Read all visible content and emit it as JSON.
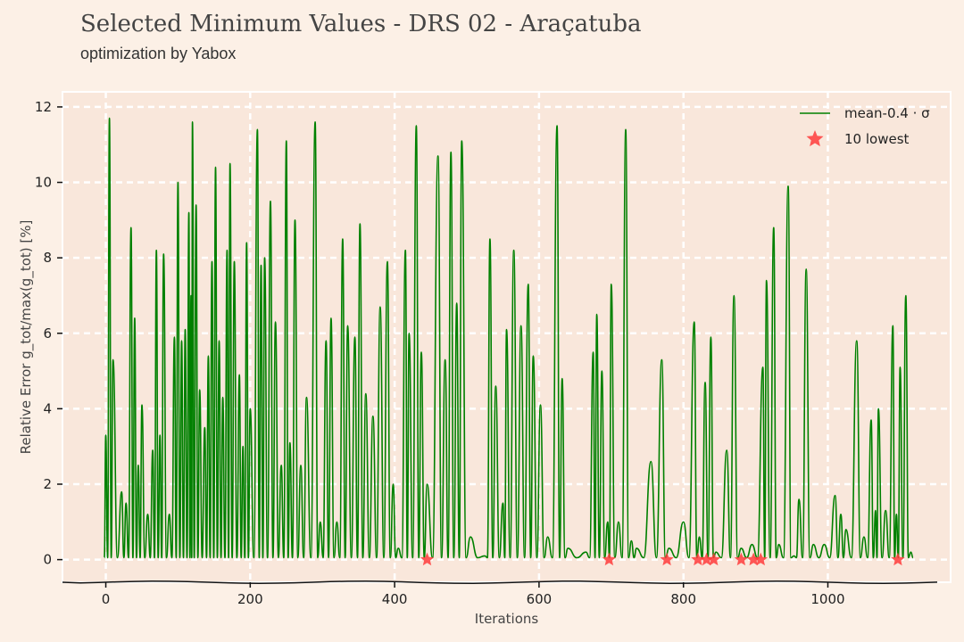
{
  "header": {
    "title": "Selected Minimum Values - DRS 02 - Araçatuba",
    "subtitle": "optimization by Yabox"
  },
  "colors": {
    "background": "#fcf0e6",
    "plot_background": "#f9e7db",
    "series": "#008000",
    "marker": "#ff3b3b",
    "grid": "#ffffff"
  },
  "chart_data": {
    "type": "line",
    "title": "Selected Minimum Values - DRS 02 - Araçatuba",
    "subtitle": "optimization by Yabox",
    "xlabel": "Iterations",
    "ylabel": "Relative Error g_tot/max(g_tot) [%]",
    "xlim": [
      -60,
      1170
    ],
    "ylim": [
      -0.6,
      12.4
    ],
    "xticks": [
      0,
      200,
      400,
      600,
      800,
      1000
    ],
    "yticks": [
      0,
      2,
      4,
      6,
      8,
      10,
      12
    ],
    "grid": true,
    "legend_position": "top-right",
    "series": [
      {
        "name": "mean-0.4 · σ",
        "peaks": [
          [
            0,
            3.3
          ],
          [
            5,
            11.7
          ],
          [
            10,
            5.3
          ],
          [
            22,
            1.8
          ],
          [
            28,
            1.5
          ],
          [
            35,
            8.8
          ],
          [
            40,
            6.4
          ],
          [
            45,
            2.5
          ],
          [
            50,
            4.1
          ],
          [
            58,
            1.2
          ],
          [
            65,
            2.9
          ],
          [
            70,
            8.2
          ],
          [
            75,
            3.3
          ],
          [
            80,
            8.1
          ],
          [
            88,
            1.2
          ],
          [
            95,
            5.9
          ],
          [
            100,
            10.0
          ],
          [
            105,
            5.8
          ],
          [
            110,
            6.1
          ],
          [
            115,
            9.2
          ],
          [
            118,
            7.0
          ],
          [
            120,
            11.6
          ],
          [
            125,
            9.4
          ],
          [
            130,
            4.5
          ],
          [
            137,
            3.5
          ],
          [
            142,
            5.4
          ],
          [
            147,
            7.9
          ],
          [
            152,
            10.4
          ],
          [
            157,
            5.8
          ],
          [
            162,
            4.3
          ],
          [
            168,
            8.2
          ],
          [
            172,
            10.5
          ],
          [
            178,
            7.9
          ],
          [
            185,
            4.9
          ],
          [
            190,
            3.0
          ],
          [
            195,
            8.4
          ],
          [
            200,
            4.0
          ],
          [
            210,
            11.4
          ],
          [
            215,
            7.8
          ],
          [
            220,
            8.0
          ],
          [
            228,
            9.5
          ],
          [
            235,
            6.3
          ],
          [
            243,
            2.5
          ],
          [
            250,
            11.1
          ],
          [
            255,
            3.1
          ],
          [
            262,
            9.0
          ],
          [
            270,
            2.5
          ],
          [
            278,
            4.3
          ],
          [
            290,
            11.6
          ],
          [
            297,
            1.0
          ],
          [
            305,
            5.8
          ],
          [
            312,
            6.4
          ],
          [
            320,
            1.0
          ],
          [
            328,
            8.5
          ],
          [
            335,
            6.2
          ],
          [
            345,
            5.9
          ],
          [
            352,
            8.9
          ],
          [
            360,
            4.4
          ],
          [
            370,
            3.8
          ],
          [
            380,
            6.7
          ],
          [
            390,
            7.9
          ],
          [
            398,
            2.0
          ],
          [
            405,
            0.3
          ],
          [
            415,
            8.2
          ],
          [
            420,
            6.0
          ],
          [
            430,
            11.5
          ],
          [
            437,
            5.5
          ],
          [
            445,
            2.0
          ],
          [
            460,
            10.7
          ],
          [
            470,
            5.3
          ],
          [
            478,
            10.8
          ],
          [
            486,
            6.8
          ],
          [
            493,
            11.1
          ],
          [
            505,
            0.6
          ],
          [
            525,
            0.1
          ],
          [
            532,
            8.5
          ],
          [
            540,
            4.6
          ],
          [
            550,
            1.5
          ],
          [
            555,
            6.1
          ],
          [
            565,
            8.2
          ],
          [
            575,
            6.2
          ],
          [
            585,
            7.3
          ],
          [
            592,
            5.4
          ],
          [
            602,
            4.1
          ],
          [
            612,
            0.6
          ],
          [
            625,
            11.5
          ],
          [
            632,
            4.8
          ],
          [
            640,
            0.3
          ],
          [
            665,
            0.2
          ],
          [
            675,
            5.5
          ],
          [
            680,
            6.5
          ],
          [
            687,
            5.0
          ],
          [
            695,
            1.0
          ],
          [
            700,
            7.3
          ],
          [
            710,
            1.0
          ],
          [
            720,
            11.4
          ],
          [
            728,
            0.5
          ],
          [
            735,
            0.3
          ],
          [
            755,
            2.6
          ],
          [
            770,
            5.3
          ],
          [
            780,
            0.3
          ],
          [
            800,
            1.0
          ],
          [
            815,
            6.3
          ],
          [
            822,
            0.6
          ],
          [
            830,
            4.7
          ],
          [
            838,
            5.9
          ],
          [
            845,
            0.2
          ],
          [
            860,
            2.9
          ],
          [
            870,
            7.0
          ],
          [
            880,
            0.3
          ],
          [
            895,
            0.4
          ],
          [
            910,
            5.1
          ],
          [
            915,
            7.4
          ],
          [
            925,
            8.8
          ],
          [
            932,
            0.4
          ],
          [
            945,
            9.9
          ],
          [
            953,
            0.1
          ],
          [
            960,
            1.6
          ],
          [
            970,
            7.7
          ],
          [
            980,
            0.4
          ],
          [
            995,
            0.4
          ],
          [
            1010,
            1.7
          ],
          [
            1018,
            1.2
          ],
          [
            1025,
            0.8
          ],
          [
            1040,
            5.8
          ],
          [
            1050,
            0.6
          ],
          [
            1060,
            3.7
          ],
          [
            1066,
            1.3
          ],
          [
            1070,
            4.0
          ],
          [
            1080,
            1.3
          ],
          [
            1090,
            6.2
          ],
          [
            1095,
            1.2
          ],
          [
            1100,
            5.1
          ],
          [
            1108,
            7.0
          ],
          [
            1115,
            0.2
          ]
        ]
      },
      {
        "name": "10 lowest",
        "x": [
          445,
          697,
          777,
          820,
          832,
          842,
          880,
          897,
          907,
          1097
        ],
        "y": [
          0.0,
          0.0,
          0.0,
          0.0,
          0.0,
          0.0,
          0.0,
          0.0,
          0.0,
          0.0
        ]
      }
    ]
  }
}
